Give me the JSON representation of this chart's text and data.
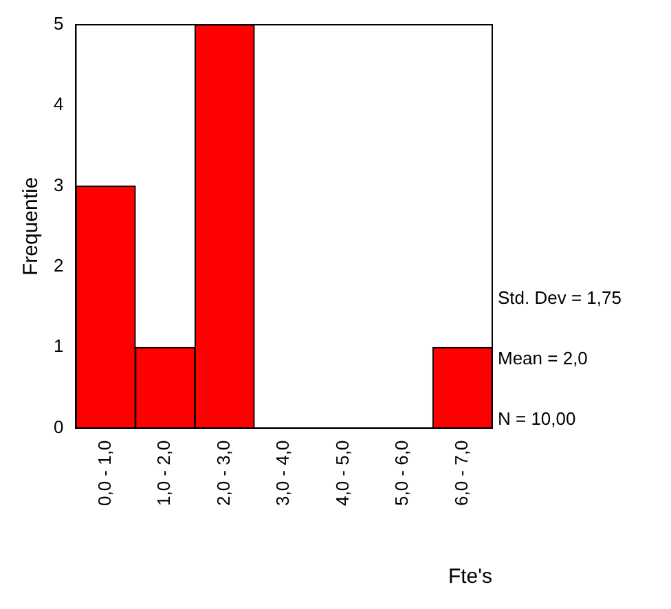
{
  "chart_data": {
    "type": "bar",
    "xlabel": "Fte's",
    "ylabel": "Frequentie",
    "categories": [
      "0,0 - 1,0",
      "1,0 - 2,0",
      "2,0 - 3,0",
      "3,0 - 4,0",
      "4,0 - 5,0",
      "5,0 - 6,0",
      "6,0 - 7,0"
    ],
    "values": [
      3,
      1,
      5,
      0,
      0,
      0,
      1
    ],
    "color": "#ff0000",
    "ylim": [
      0,
      5
    ],
    "yticks": [
      0,
      1,
      2,
      3,
      4,
      5
    ],
    "grid": false,
    "legend": false,
    "annotations": [
      "Std. Dev = 1,75",
      "Mean = 2,0",
      "N = 10,00"
    ]
  }
}
